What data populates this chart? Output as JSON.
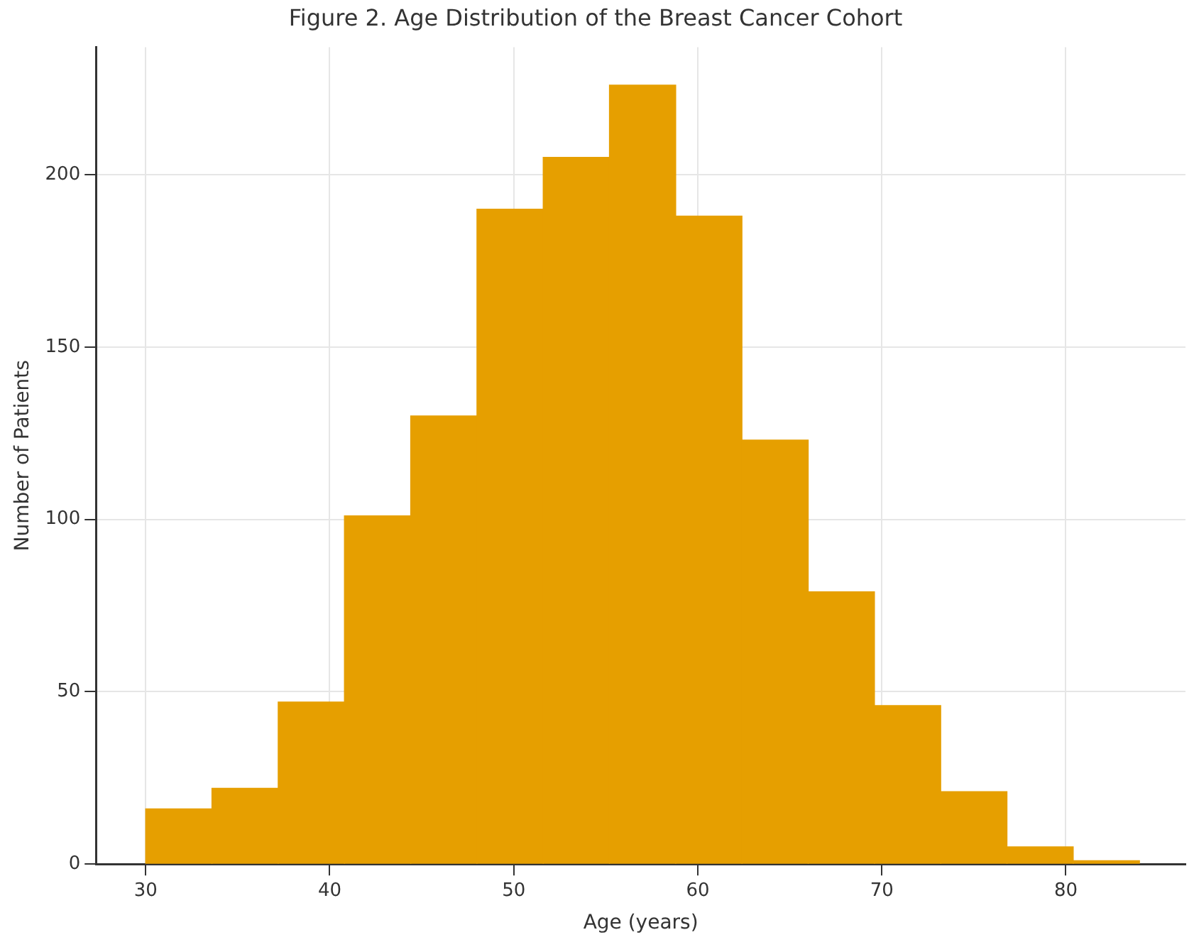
{
  "chart_data": {
    "type": "histogram",
    "title": "Figure 2. Age Distribution of the Breast Cancer Cohort",
    "xlabel": "Age (years)",
    "ylabel": "Number of Patients",
    "bins": [
      30,
      33.6,
      37.2,
      40.8,
      44.4,
      48.0,
      51.6,
      55.2,
      58.8,
      62.4,
      66.0,
      69.6,
      73.2,
      76.8,
      80.4,
      84.0
    ],
    "values": [
      16,
      22,
      47,
      101,
      130,
      190,
      205,
      226,
      188,
      123,
      79,
      46,
      21,
      5,
      1
    ],
    "color": "#e69f00",
    "xlim": [
      27.3,
      86.5
    ],
    "xticks": [
      30,
      40,
      50,
      60,
      70,
      80
    ],
    "ylim": [
      0,
      237
    ],
    "yticks": [
      0,
      50,
      100,
      150,
      200
    ],
    "grid": true
  }
}
